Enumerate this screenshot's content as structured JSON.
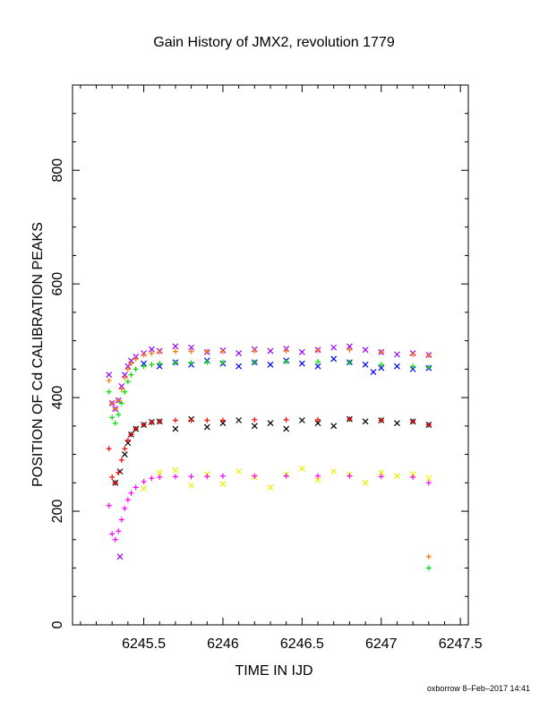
{
  "chart_data": {
    "type": "scatter",
    "title": "Gain History of JMX2, revolution 1779",
    "xlabel": "TIME IN IJD",
    "ylabel": "POSITION OF Cd CALIBRATION PEAKS",
    "xlim": [
      6245.05,
      6247.55
    ],
    "ylim": [
      0,
      950
    ],
    "xticks": [
      6245.5,
      6246,
      6246.5,
      6247,
      6247.5
    ],
    "xtick_labels": [
      "6245.5",
      "6246",
      "6246.5",
      "6247",
      "6247.5"
    ],
    "yticks": [
      0,
      200,
      400,
      600,
      800
    ],
    "ytick_labels": [
      "0",
      "200",
      "400",
      "600",
      "800"
    ],
    "grid": false,
    "series": [
      {
        "color": "#9900ff",
        "marker": "x",
        "x": [
          6245.28,
          6245.3,
          6245.32,
          6245.34,
          6245.36,
          6245.38,
          6245.4,
          6245.42,
          6245.45,
          6245.5,
          6245.55,
          6245.6,
          6245.7,
          6245.8,
          6245.9,
          6246.0,
          6246.1,
          6246.2,
          6246.3,
          6246.4,
          6246.5,
          6246.6,
          6246.7,
          6246.8,
          6246.9,
          6247.0,
          6247.1,
          6247.2,
          6247.3
        ],
        "y": [
          440,
          390,
          380,
          395,
          420,
          440,
          455,
          465,
          472,
          478,
          485,
          482,
          490,
          488,
          480,
          483,
          478,
          485,
          482,
          486,
          480,
          484,
          488,
          490,
          484,
          480,
          476,
          478,
          475
        ]
      },
      {
        "color": "#ff7700",
        "marker": "+",
        "x": [
          6245.28,
          6245.3,
          6245.32,
          6245.34,
          6245.36,
          6245.38,
          6245.4,
          6245.42,
          6245.45,
          6245.5,
          6245.55,
          6245.6,
          6245.7,
          6245.8,
          6245.9,
          6246.0,
          6246.2,
          6246.4,
          6246.6,
          6246.8,
          6247.0,
          6247.2,
          6247.3,
          6247.3
        ],
        "y": [
          430,
          390,
          380,
          395,
          415,
          435,
          450,
          460,
          468,
          475,
          478,
          480,
          481,
          481,
          481,
          481,
          482,
          482,
          483,
          484,
          480,
          476,
          474,
          120
        ]
      },
      {
        "color": "#0000ff",
        "marker": "x",
        "x": [
          6245.5,
          6245.6,
          6245.7,
          6245.8,
          6245.9,
          6246.0,
          6246.1,
          6246.2,
          6246.3,
          6246.4,
          6246.5,
          6246.6,
          6246.7,
          6246.8,
          6246.9,
          6246.95,
          6247.0,
          6247.1,
          6247.2,
          6247.3
        ],
        "y": [
          460,
          455,
          462,
          458,
          465,
          460,
          455,
          462,
          458,
          465,
          460,
          455,
          468,
          462,
          458,
          445,
          452,
          455,
          450,
          452
        ]
      },
      {
        "color": "#00dd00",
        "marker": "+",
        "x": [
          6245.28,
          6245.3,
          6245.32,
          6245.34,
          6245.36,
          6245.38,
          6245.4,
          6245.42,
          6245.45,
          6245.5,
          6245.55,
          6245.6,
          6245.7,
          6245.8,
          6245.9,
          6246.0,
          6246.2,
          6246.4,
          6246.6,
          6246.8,
          6247.0,
          6247.2,
          6247.3,
          6247.3
        ],
        "y": [
          410,
          365,
          355,
          370,
          390,
          410,
          428,
          440,
          450,
          455,
          458,
          460,
          461,
          461,
          462,
          462,
          462,
          463,
          463,
          462,
          458,
          455,
          453,
          100
        ]
      },
      {
        "color": "#000000",
        "marker": "x",
        "x": [
          6245.32,
          6245.35,
          6245.38,
          6245.4,
          6245.42,
          6245.45,
          6245.5,
          6245.55,
          6245.6,
          6245.7,
          6245.8,
          6245.9,
          6246.0,
          6246.1,
          6246.2,
          6246.3,
          6246.4,
          6246.5,
          6246.6,
          6246.7,
          6246.8,
          6246.9,
          6247.0,
          6247.1,
          6247.2,
          6247.3
        ],
        "y": [
          250,
          270,
          300,
          320,
          335,
          345,
          352,
          357,
          358,
          345,
          362,
          348,
          355,
          360,
          350,
          355,
          345,
          360,
          355,
          350,
          362,
          358,
          360,
          355,
          358,
          352
        ]
      },
      {
        "color": "#ff0000",
        "marker": "+",
        "x": [
          6245.28,
          6245.3,
          6245.32,
          6245.34,
          6245.36,
          6245.38,
          6245.4,
          6245.42,
          6245.45,
          6245.5,
          6245.55,
          6245.6,
          6245.7,
          6245.8,
          6245.9,
          6246.0,
          6246.2,
          6246.4,
          6246.6,
          6246.8,
          6247.0,
          6247.2,
          6247.3
        ],
        "y": [
          310,
          260,
          250,
          268,
          290,
          310,
          325,
          335,
          345,
          352,
          356,
          358,
          360,
          360,
          360,
          360,
          361,
          361,
          361,
          362,
          360,
          358,
          352
        ]
      },
      {
        "color": "#eeee00",
        "marker": "x",
        "x": [
          6245.5,
          6245.6,
          6245.7,
          6245.8,
          6245.9,
          6246.0,
          6246.1,
          6246.2,
          6246.3,
          6246.4,
          6246.5,
          6246.6,
          6246.7,
          6246.8,
          6246.9,
          6247.0,
          6247.1,
          6247.2,
          6247.3
        ],
        "y": [
          240,
          268,
          272,
          245,
          265,
          248,
          270,
          260,
          242,
          265,
          275,
          255,
          270,
          265,
          250,
          268,
          262,
          265,
          258
        ]
      },
      {
        "color": "#ff00ff",
        "marker": "+",
        "x": [
          6245.28,
          6245.3,
          6245.32,
          6245.34,
          6245.36,
          6245.38,
          6245.4,
          6245.42,
          6245.45,
          6245.5,
          6245.55,
          6245.6,
          6245.7,
          6245.8,
          6245.9,
          6246.0,
          6246.2,
          6246.4,
          6246.6,
          6246.8,
          6247.0,
          6247.2,
          6247.3
        ],
        "y": [
          210,
          160,
          150,
          165,
          185,
          205,
          220,
          232,
          242,
          252,
          258,
          260,
          261,
          261,
          261,
          262,
          262,
          262,
          262,
          262,
          261,
          260,
          250
        ]
      },
      {
        "color": "#9900ff",
        "marker": "x",
        "x": [
          6245.35
        ],
        "y": [
          120
        ]
      }
    ]
  },
  "footer": "oxborrow  8–Feb–2017 14:41"
}
